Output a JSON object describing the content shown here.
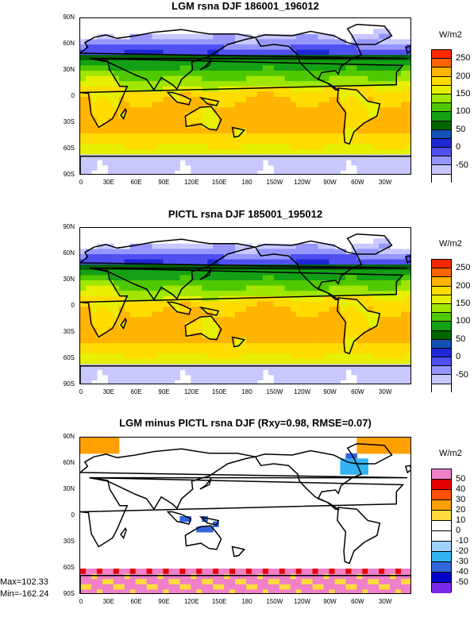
{
  "panels": [
    {
      "title": "LGM rsna DJF 186001_196012",
      "units": "W/m2",
      "colorbar": {
        "colors": [
          "#ffffff",
          "#c8c8ff",
          "#9696ff",
          "#5050f0",
          "#1e28d2",
          "#1450b4",
          "#006400",
          "#14a014",
          "#50c800",
          "#a0e600",
          "#e6f000",
          "#ffdc00",
          "#ffb400",
          "#ff6400",
          "#ff2800"
        ],
        "labels": [
          "-50",
          "0",
          "50",
          "100",
          "150",
          "200",
          "250"
        ]
      }
    },
    {
      "title": "PICTL rsna DJF 185001_195012",
      "units": "W/m2",
      "colorbar": {
        "colors": [
          "#ffffff",
          "#c8c8ff",
          "#9696ff",
          "#5050f0",
          "#1e28d2",
          "#1450b4",
          "#006400",
          "#14a014",
          "#50c800",
          "#a0e600",
          "#e6f000",
          "#ffdc00",
          "#ffb400",
          "#ff6400",
          "#ff2800"
        ],
        "labels": [
          "-50",
          "0",
          "50",
          "100",
          "150",
          "200",
          "250"
        ]
      }
    },
    {
      "title": "LGM minus PICTL rsna DJF (Rxy=0.98, RMSE=0.07)",
      "units": "W/m2",
      "colorbar": {
        "colors": [
          "#f080c8",
          "#e60000",
          "#ff5000",
          "#ffa000",
          "#ffdc3c",
          "#ffffff",
          "#ffffff",
          "#a0d2ff",
          "#32b4f0",
          "#3264dc",
          "#0000c8",
          "#7828e6"
        ],
        "labels": [
          "50",
          "40",
          "30",
          "20",
          "10",
          "0",
          "-10",
          "-20",
          "-30",
          "-40",
          "-50"
        ]
      }
    }
  ],
  "axes": {
    "lat_labels": [
      "90N",
      "60N",
      "30N",
      "0",
      "30S",
      "60S",
      "90S"
    ],
    "lon_labels": [
      "0",
      "30E",
      "60E",
      "90E",
      "120E",
      "150E",
      "180",
      "150W",
      "120W",
      "90W",
      "60W",
      "30W"
    ]
  },
  "stats": {
    "max": "Max=102.33",
    "min": "Min=-162.24"
  }
}
